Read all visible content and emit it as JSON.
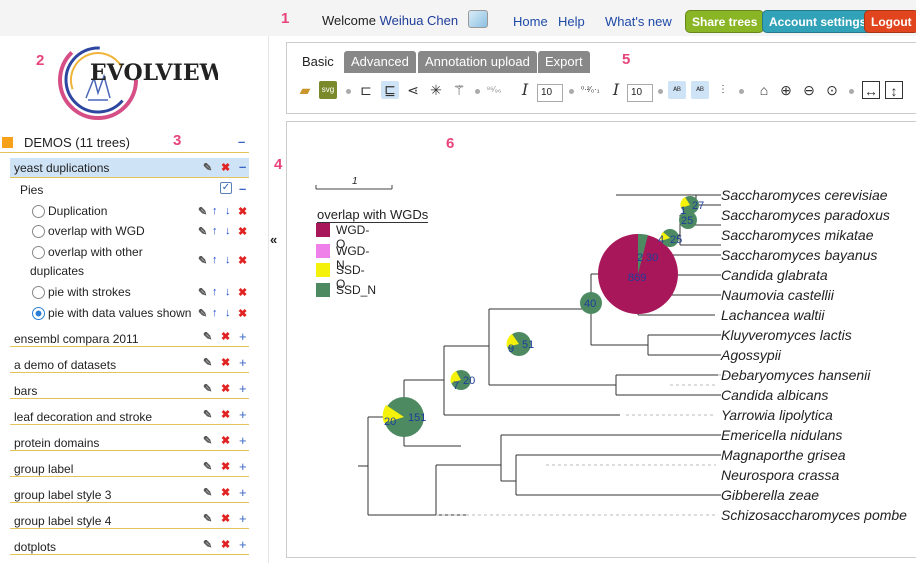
{
  "markers": [
    "1",
    "2",
    "3",
    "4",
    "5",
    "6"
  ],
  "header": {
    "welcome": "Welcome",
    "user": "Weihua Chen",
    "links": [
      "Home",
      "Help",
      "What's new"
    ],
    "buttons": [
      {
        "label": "Share trees",
        "color": "#8ab524"
      },
      {
        "label": "Account settings",
        "color": "#31a2b8"
      },
      {
        "label": "Logout",
        "color": "#e0451d"
      }
    ]
  },
  "logo": {
    "text": "EVOLVIEW"
  },
  "sidebar": {
    "group_label": "DEMOS (11 trees)",
    "active_tree": "yeast duplications",
    "pies_label": "Pies",
    "datasets": [
      "Duplication",
      "overlap with WGD",
      "overlap with other duplicates",
      "pie with strokes",
      "pie with data values shown"
    ],
    "selected_dataset": 4,
    "trees": [
      "ensembl compara 2011",
      "a demo of datasets",
      "bars",
      "leaf decoration and stroke",
      "protein domains",
      "group label",
      "group label style 3",
      "group label style 4",
      "dotplots"
    ],
    "collapse_icon": "«"
  },
  "toolbar": {
    "tabs": [
      "Basic",
      "Advanced",
      "Annotation upload",
      "Export"
    ],
    "font_size_1": "10",
    "font_size_2": "10"
  },
  "legend": {
    "title": "overlap with WGDs",
    "items": [
      {
        "label": "WGD-O",
        "color": "#a8175a"
      },
      {
        "label": "WGD-N",
        "color": "#ef80ea"
      },
      {
        "label": "SSD-O",
        "color": "#f4f20a"
      },
      {
        "label": "SSD_N",
        "color": "#4d8a62"
      }
    ]
  },
  "scale_label": "1",
  "species": [
    "Saccharomyces cerevisiae",
    "Saccharomyces paradoxus",
    "Saccharomyces mikatae",
    "Saccharomyces bayanus",
    "Candida glabrata",
    "Naumovia castellii",
    "Lachancea waltii",
    "Kluyveromyces lactis",
    "Agossypii",
    "Debaryomyces hansenii",
    "Candida albicans",
    "Yarrowia lipolytica",
    "Emericella nidulans",
    "Magnaporthe grisea",
    "Neurospora crassa",
    "Gibberella zeae",
    "Schizosaccharomyces pombe"
  ],
  "pies": [
    {
      "values": [
        "20",
        "151"
      ]
    },
    {
      "values": [
        "7",
        "20"
      ]
    },
    {
      "values": [
        "9",
        "51"
      ]
    },
    {
      "values": [
        "40"
      ]
    },
    {
      "values": [
        "869",
        "2",
        "30"
      ]
    },
    {
      "values": [
        "4",
        "25"
      ]
    },
    {
      "values": [
        "25"
      ]
    },
    {
      "values": [
        "1",
        "27"
      ]
    }
  ]
}
